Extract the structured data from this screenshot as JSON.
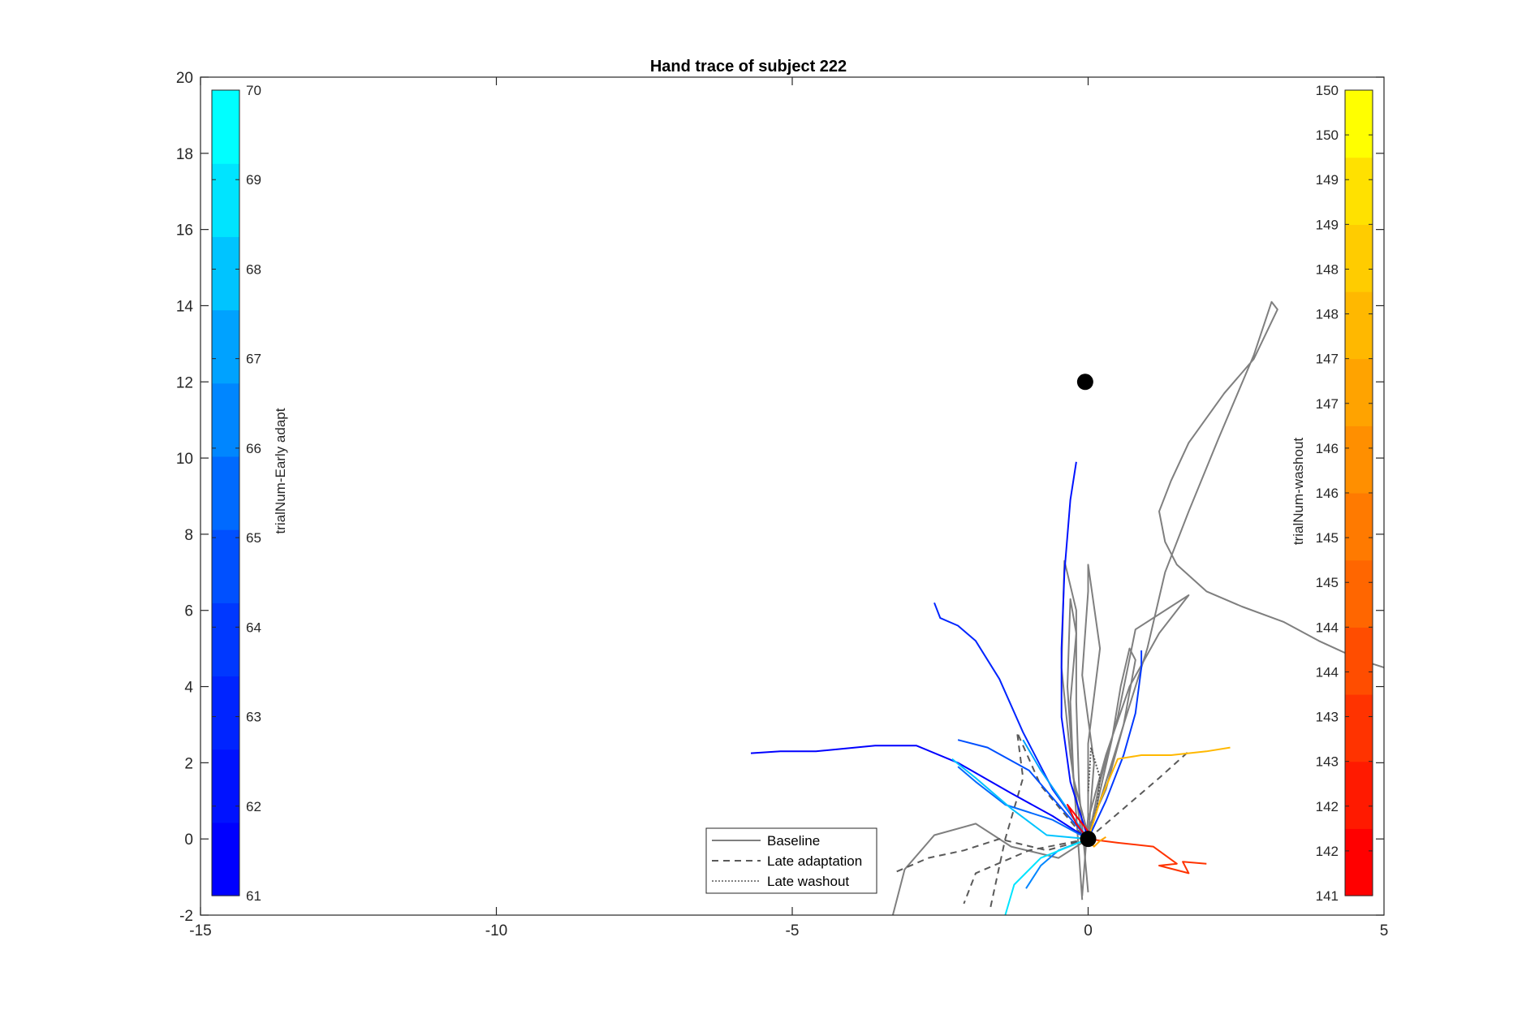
{
  "chart_data": {
    "type": "line",
    "title": "Hand trace of subject 222",
    "xlabel": "",
    "ylabel": "",
    "xlim": [
      -15,
      5
    ],
    "ylim": [
      -2,
      20
    ],
    "xticks": [
      "-15",
      "-10",
      "-5",
      "0"
    ],
    "xticks_right": "5",
    "yticks": [
      "-2",
      "0",
      "2",
      "4",
      "6",
      "8",
      "10",
      "12",
      "14",
      "16",
      "18",
      "20"
    ],
    "grid": false,
    "legend": {
      "placement": "bottom-center",
      "entries": [
        {
          "label": "Baseline",
          "style": "solid",
          "color": "#7f7f7f"
        },
        {
          "label": "Late adaptation",
          "style": "dashed",
          "color": "#595959"
        },
        {
          "label": "Late washout",
          "style": "dotted",
          "color": "#595959"
        }
      ]
    },
    "targets": [
      {
        "x": 0,
        "y": 0
      },
      {
        "x": -0.05,
        "y": 12
      }
    ],
    "colorbar_left": {
      "label": "trialNum-Early adapt",
      "ticks": [
        "61",
        "62",
        "63",
        "64",
        "65",
        "66",
        "67",
        "68",
        "69",
        "70"
      ],
      "colors": [
        "#0000ff",
        "#0012ff",
        "#0024ff",
        "#0038ff",
        "#0050ff",
        "#006aff",
        "#0086ff",
        "#00a2ff",
        "#00c4ff",
        "#00e4ff",
        "#00ffff"
      ]
    },
    "colorbar_right": {
      "label": "trialNum-washout",
      "ticks": [
        "141",
        "142",
        "142",
        "143",
        "143",
        "144",
        "144",
        "145",
        "145",
        "146",
        "146",
        "147",
        "147",
        "148",
        "148",
        "149",
        "149",
        "150",
        "150"
      ],
      "colors": [
        "#ff0000",
        "#ff1a00",
        "#ff3300",
        "#ff4d00",
        "#ff6600",
        "#ff7a00",
        "#ff8f00",
        "#ffa300",
        "#ffb800",
        "#ffcc00",
        "#ffe100",
        "#ffff00"
      ]
    },
    "series": [
      {
        "group": "baseline",
        "style": "solid",
        "color": "#7f7f7f",
        "points": [
          [
            0,
            0
          ],
          [
            0.2,
            1
          ],
          [
            0.6,
            3
          ],
          [
            1,
            5
          ],
          [
            1.3,
            7
          ],
          [
            1.7,
            8.6
          ],
          [
            2.2,
            10.5
          ],
          [
            2.8,
            12.7
          ],
          [
            3.1,
            14.1
          ],
          [
            3.2,
            13.9
          ],
          [
            2.8,
            12.6
          ],
          [
            2.3,
            11.7
          ],
          [
            1.7,
            10.4
          ],
          [
            1.4,
            9.4
          ],
          [
            1.2,
            8.6
          ],
          [
            1.3,
            7.8
          ],
          [
            1.5,
            7.2
          ],
          [
            2,
            6.5
          ],
          [
            2.6,
            6.1
          ],
          [
            3.3,
            5.7
          ],
          [
            3.9,
            5.2
          ],
          [
            4.6,
            4.7
          ],
          [
            5,
            4.5
          ]
        ]
      },
      {
        "group": "baseline",
        "style": "solid",
        "color": "#7f7f7f",
        "points": [
          [
            0,
            0
          ],
          [
            0.1,
            2
          ],
          [
            -0.1,
            4.3
          ],
          [
            0,
            6.5
          ],
          [
            0,
            7.2
          ],
          [
            0.2,
            5
          ],
          [
            0,
            2.5
          ],
          [
            0,
            0.6
          ],
          [
            -0.1,
            -1.5
          ]
        ]
      },
      {
        "group": "baseline",
        "style": "solid",
        "color": "#7f7f7f",
        "points": [
          [
            0,
            0
          ],
          [
            0.2,
            1.5
          ],
          [
            0.5,
            3.2
          ],
          [
            0.8,
            5.5
          ],
          [
            1.7,
            6.4
          ],
          [
            1.2,
            5.4
          ],
          [
            0.7,
            4
          ],
          [
            0.3,
            2.2
          ],
          [
            0,
            0.5
          ]
        ]
      },
      {
        "group": "baseline",
        "style": "solid",
        "color": "#7f7f7f",
        "points": [
          [
            -0.1,
            0
          ],
          [
            -0.3,
            2.2
          ],
          [
            -0.45,
            4.5
          ],
          [
            -0.4,
            7.3
          ],
          [
            -0.2,
            6
          ],
          [
            -0.2,
            3.6
          ],
          [
            -0.15,
            1.2
          ],
          [
            0,
            -1.4
          ]
        ]
      },
      {
        "group": "baseline",
        "style": "solid",
        "color": "#7f7f7f",
        "points": [
          [
            0,
            0
          ],
          [
            -0.5,
            -0.5
          ],
          [
            -1.3,
            -0.2
          ],
          [
            -1.9,
            0.4
          ],
          [
            -2.6,
            0.1
          ],
          [
            -3.1,
            -0.8
          ],
          [
            -3.3,
            -2
          ]
        ]
      },
      {
        "group": "baseline",
        "style": "solid",
        "color": "#7f7f7f",
        "points": [
          [
            -0.05,
            0.1
          ],
          [
            0.3,
            1.3
          ],
          [
            0.6,
            3
          ],
          [
            0.8,
            4.7
          ],
          [
            0.7,
            5
          ],
          [
            0.55,
            4
          ],
          [
            0.4,
            2.6
          ],
          [
            0.15,
            0.9
          ],
          [
            0,
            0
          ]
        ]
      },
      {
        "group": "baseline",
        "style": "solid",
        "color": "#7f7f7f",
        "points": [
          [
            0,
            0.1
          ],
          [
            -0.25,
            1.6
          ],
          [
            -0.35,
            4
          ],
          [
            -0.3,
            6.3
          ],
          [
            -0.2,
            5.4
          ],
          [
            -0.3,
            3.6
          ],
          [
            -0.25,
            1.7
          ],
          [
            -0.1,
            -1.6
          ]
        ]
      },
      {
        "group": "late_adaptation",
        "style": "dashed",
        "color": "#595959",
        "points": [
          [
            0,
            0
          ],
          [
            -0.7,
            -0.3
          ],
          [
            -1.5,
            0
          ],
          [
            -2.1,
            -0.3
          ],
          [
            -2.7,
            -0.5
          ],
          [
            -3.3,
            -0.9
          ]
        ]
      },
      {
        "group": "late_adaptation",
        "style": "dashed",
        "color": "#595959",
        "points": [
          [
            0,
            0
          ],
          [
            0.6,
            0.8
          ],
          [
            1.2,
            1.6
          ],
          [
            1.7,
            2.3
          ]
        ]
      },
      {
        "group": "late_adaptation",
        "style": "dashed",
        "color": "#595959",
        "points": [
          [
            -0.1,
            0.1
          ],
          [
            -0.8,
            1.4
          ],
          [
            -1.2,
            2.8
          ],
          [
            -1.1,
            1.6
          ],
          [
            -1.4,
            0
          ],
          [
            -1.65,
            -1.8
          ]
        ]
      },
      {
        "group": "late_adaptation",
        "style": "dashed",
        "color": "#595959",
        "points": [
          [
            0,
            0
          ],
          [
            -1,
            -0.3
          ],
          [
            -1.9,
            -0.9
          ],
          [
            -2.1,
            -1.7
          ]
        ]
      },
      {
        "group": "late_washout",
        "style": "dotted",
        "color": "#595959",
        "points": [
          [
            0,
            0
          ],
          [
            0.15,
            0.8
          ],
          [
            0.2,
            1.6
          ],
          [
            0.05,
            2.4
          ],
          [
            0,
            1.2
          ]
        ]
      },
      {
        "group": "early_adapt",
        "style": "solid",
        "color": "#0000ff",
        "points": [
          [
            -5.7,
            2.25
          ],
          [
            -5.2,
            2.3
          ],
          [
            -4.6,
            2.3
          ],
          [
            -3.6,
            2.45
          ],
          [
            -2.9,
            2.45
          ],
          [
            -2.2,
            2
          ],
          [
            -1.3,
            1.2
          ],
          [
            -0.6,
            0.6
          ],
          [
            0,
            0
          ]
        ]
      },
      {
        "group": "early_adapt",
        "style": "solid",
        "color": "#0012ff",
        "points": [
          [
            0,
            0
          ],
          [
            -0.3,
            1.5
          ],
          [
            -0.45,
            3.2
          ],
          [
            -0.45,
            5
          ],
          [
            -0.4,
            7
          ],
          [
            -0.3,
            8.9
          ],
          [
            -0.2,
            9.9
          ]
        ]
      },
      {
        "group": "early_adapt",
        "style": "solid",
        "color": "#0024ff",
        "points": [
          [
            0,
            0
          ],
          [
            -0.6,
            1.3
          ],
          [
            -1.1,
            2.8
          ],
          [
            -1.5,
            4.2
          ],
          [
            -1.9,
            5.2
          ],
          [
            -2.2,
            5.6
          ],
          [
            -2.5,
            5.8
          ],
          [
            -2.6,
            6.2
          ]
        ]
      },
      {
        "group": "early_adapt",
        "style": "solid",
        "color": "#0038ff",
        "points": [
          [
            0,
            0
          ],
          [
            0.3,
            1
          ],
          [
            0.6,
            2.2
          ],
          [
            0.8,
            3.3
          ],
          [
            0.9,
            4.5
          ],
          [
            0.9,
            4.95
          ]
        ]
      },
      {
        "group": "early_adapt",
        "style": "solid",
        "color": "#0050ff",
        "points": [
          [
            0,
            0
          ],
          [
            -0.5,
            0.9
          ],
          [
            -1,
            1.8
          ],
          [
            -1.7,
            2.4
          ],
          [
            -2.2,
            2.6
          ]
        ]
      },
      {
        "group": "early_adapt",
        "style": "solid",
        "color": "#006aff",
        "points": [
          [
            0,
            0
          ],
          [
            -0.6,
            0.5
          ],
          [
            -1.4,
            0.9
          ],
          [
            -1.9,
            1.5
          ],
          [
            -2.2,
            1.9
          ]
        ]
      },
      {
        "group": "early_adapt",
        "style": "solid",
        "color": "#0086ff",
        "points": [
          [
            0,
            0
          ],
          [
            -0.5,
            -0.3
          ],
          [
            -0.8,
            -0.7
          ],
          [
            -1.05,
            -1.3
          ]
        ]
      },
      {
        "group": "early_adapt",
        "style": "solid",
        "color": "#00a2ff",
        "points": [
          [
            0,
            0
          ],
          [
            -0.4,
            0.9
          ],
          [
            -0.8,
            1.8
          ],
          [
            -1.1,
            2.6
          ]
        ]
      },
      {
        "group": "early_adapt",
        "style": "solid",
        "color": "#00c4ff",
        "points": [
          [
            0,
            0
          ],
          [
            -0.7,
            0.1
          ],
          [
            -1.3,
            0.8
          ],
          [
            -1.9,
            1.6
          ],
          [
            -2.3,
            2.1
          ]
        ]
      },
      {
        "group": "early_adapt",
        "style": "solid",
        "color": "#00e4ff",
        "points": [
          [
            0,
            0
          ],
          [
            -0.8,
            -0.5
          ],
          [
            -1.25,
            -1.2
          ],
          [
            -1.4,
            -2
          ]
        ]
      },
      {
        "group": "washout",
        "style": "solid",
        "color": "#ff3300",
        "points": [
          [
            0,
            0
          ],
          [
            0.5,
            -0.1
          ],
          [
            1.1,
            -0.2
          ],
          [
            1.5,
            -0.65
          ],
          [
            1.2,
            -0.7
          ],
          [
            1.7,
            -0.9
          ],
          [
            1.6,
            -0.6
          ],
          [
            2.0,
            -0.65
          ]
        ]
      },
      {
        "group": "washout",
        "style": "solid",
        "color": "#ffb800",
        "points": [
          [
            0,
            0
          ],
          [
            0.2,
            1
          ],
          [
            0.5,
            2.1
          ],
          [
            0.9,
            2.2
          ],
          [
            1.4,
            2.2
          ],
          [
            2,
            2.3
          ],
          [
            2.4,
            2.4
          ]
        ]
      },
      {
        "group": "washout",
        "style": "solid",
        "color": "#ff0000",
        "points": [
          [
            0,
            0
          ],
          [
            -0.2,
            0.4
          ],
          [
            -0.35,
            0.9
          ],
          [
            -0.15,
            0.5
          ],
          [
            0,
            0.2
          ]
        ]
      },
      {
        "group": "washout",
        "style": "solid",
        "color": "#ffa300",
        "points": [
          [
            0,
            0
          ],
          [
            0.1,
            -0.2
          ],
          [
            0.2,
            -0.05
          ],
          [
            0.3,
            0.05
          ]
        ]
      }
    ]
  }
}
